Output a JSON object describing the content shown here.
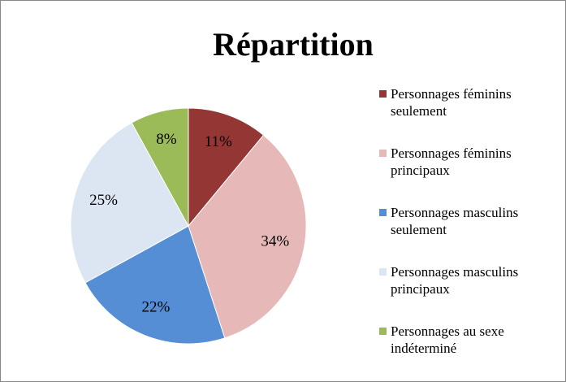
{
  "chart_data": {
    "type": "pie",
    "title": "Répartition",
    "categories": [
      "Personnages féminins seulement",
      "Personnages féminins principaux",
      "Personnages masculins seulement",
      "Personnages masculins principaux",
      "Personnages au sexe indéterminé"
    ],
    "values": [
      11,
      34,
      22,
      25,
      8
    ],
    "value_labels": [
      "11%",
      "34%",
      "22%",
      "25%",
      "8%"
    ],
    "colors": [
      "#943634",
      "#e6b9b8",
      "#558ed5",
      "#dce6f2",
      "#9bbb59"
    ],
    "legend": "right"
  }
}
